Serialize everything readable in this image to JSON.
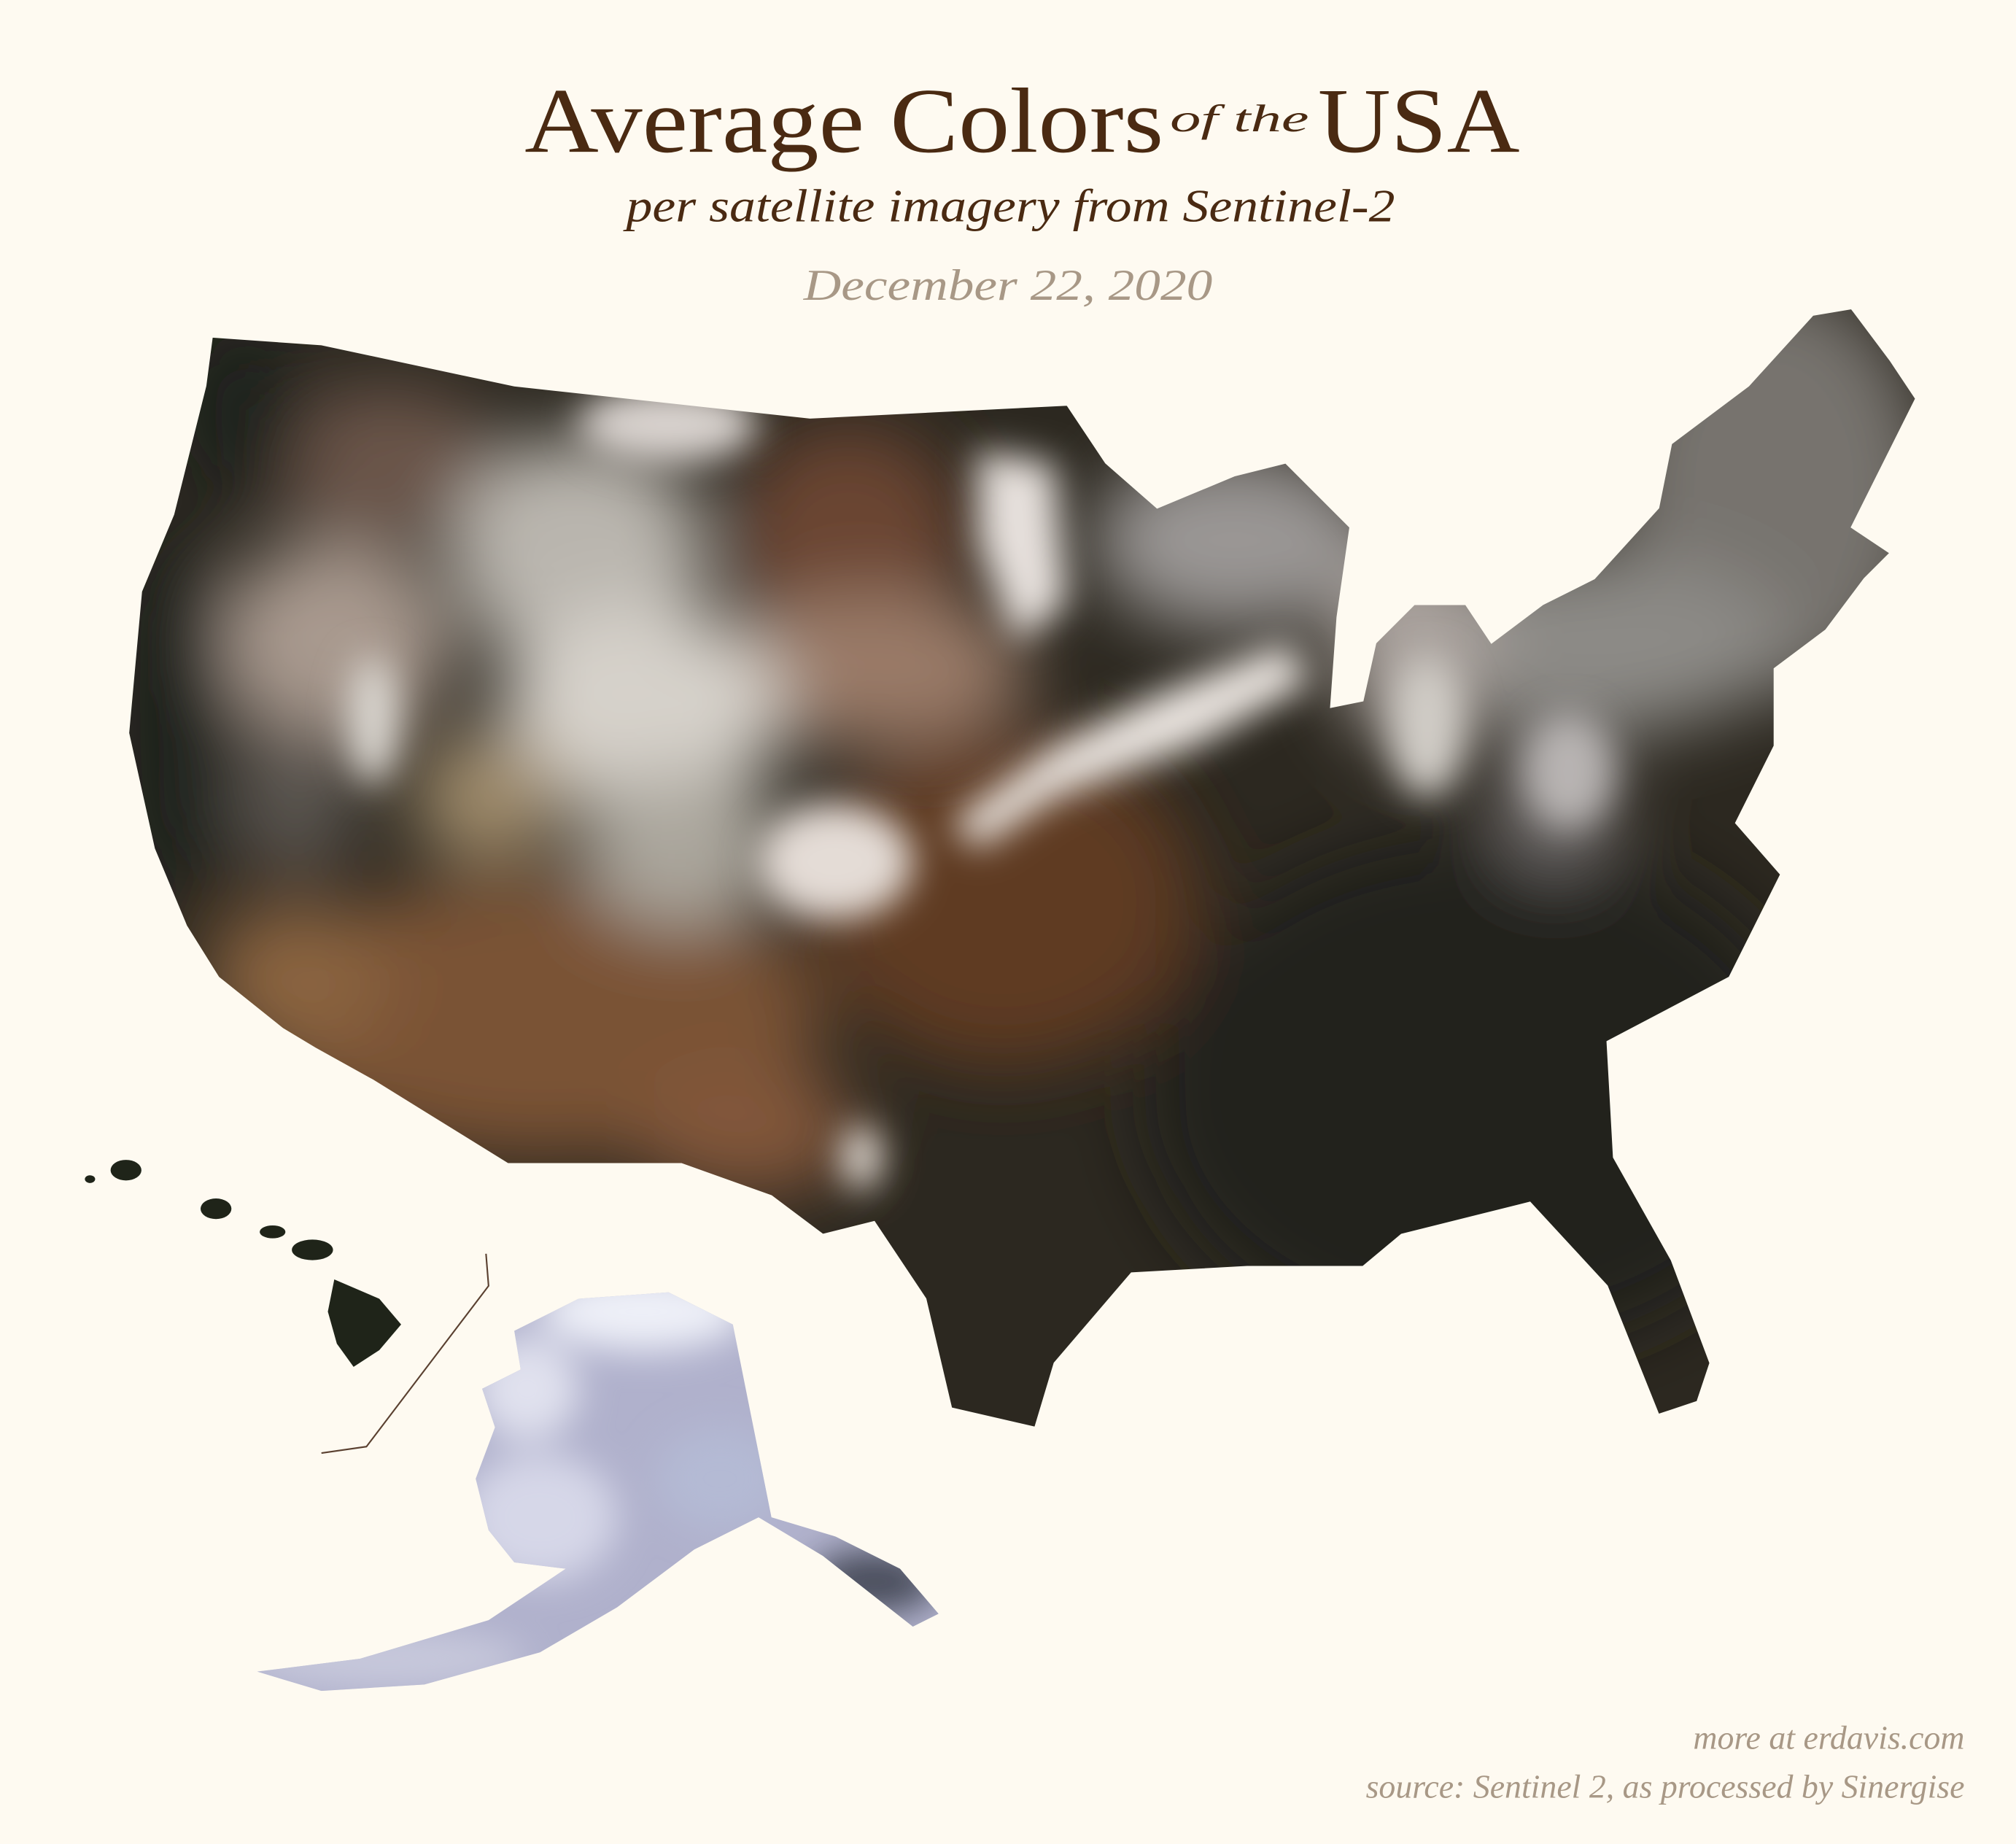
{
  "title": {
    "part1": "Average Colors",
    "connector": "of the",
    "part2": "USA",
    "subtitle": "per satellite imagery from Sentinel-2",
    "date": "December 22, 2020"
  },
  "footer": {
    "more": "more at erdavis.com",
    "source": "source: Sentinel 2, as processed by Sinergise"
  },
  "colors": {
    "background": "#fefaf1",
    "title": "#4a2a12",
    "muted_text": "#a89886",
    "east_dark": "#2c2820",
    "southeast_dark": "#22241c",
    "southwest_brown": "#7a5234",
    "plains_brown": "#5e3a24",
    "snow_band": "#ebe5e0",
    "rockies_gray": "#b9b5ae",
    "west_coast_dark": "#1c201c",
    "northeast_gray": "#77736e",
    "hawaii": "#1f2419",
    "alaska": "#b0b1cc"
  },
  "map": {
    "regions": [
      "Contiguous US",
      "Alaska",
      "Hawaii"
    ]
  }
}
